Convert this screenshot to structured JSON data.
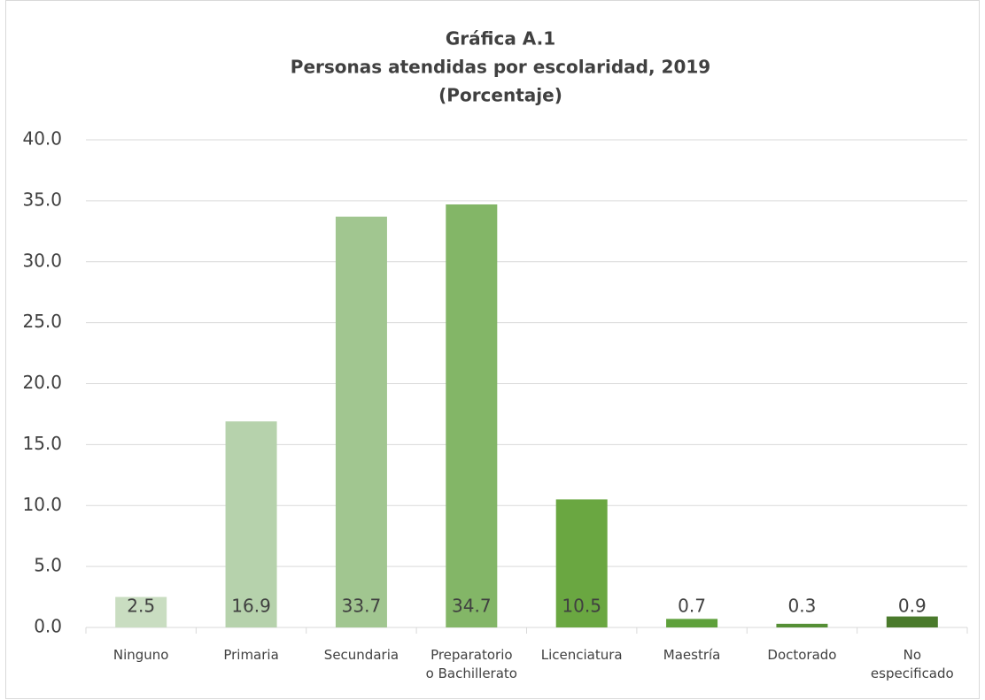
{
  "chart_data": {
    "type": "bar",
    "title": [
      "Gráfica A.1",
      "Personas atendidas por escolaridad, 2019",
      "(Porcentaje)"
    ],
    "categories": [
      "Ninguno",
      "Primaria",
      "Secundaria",
      "Preparatorio o Bachillerato",
      "Licenciatura",
      "Maestría",
      "Doctorado",
      "No especificado"
    ],
    "values": [
      2.5,
      16.9,
      33.7,
      34.7,
      10.5,
      0.7,
      0.3,
      0.9
    ],
    "colors": [
      "#c9ddc1",
      "#b6d2ac",
      "#a1c690",
      "#83b667",
      "#6aa741",
      "#5ea03b",
      "#558f35",
      "#4a7a2c"
    ],
    "ylim": [
      0,
      40
    ],
    "yticks": [
      {
        "value": 0,
        "label": "0.0"
      },
      {
        "value": 5,
        "label": "5.0"
      },
      {
        "value": 10,
        "label": "10.0"
      },
      {
        "value": 15,
        "label": "15.0"
      },
      {
        "value": 20,
        "label": "20.0"
      },
      {
        "value": 25,
        "label": "25.0"
      },
      {
        "value": 30,
        "label": "30.0"
      },
      {
        "value": 35,
        "label": "35.0"
      },
      {
        "value": 40,
        "label": "40.0"
      }
    ],
    "grid": true
  }
}
